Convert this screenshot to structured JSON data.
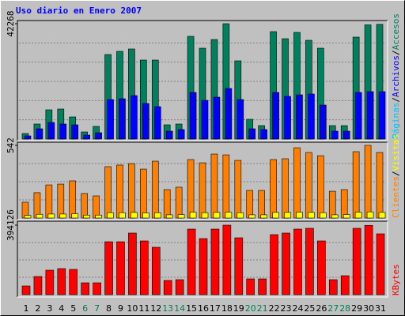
{
  "chart_data": {
    "type": "bar",
    "title": "Uso diario en Enero 2007",
    "categories": [
      "1",
      "2",
      "3",
      "4",
      "5",
      "6",
      "7",
      "8",
      "9",
      "10",
      "11",
      "12",
      "13",
      "14",
      "15",
      "16",
      "17",
      "18",
      "19",
      "20",
      "21",
      "22",
      "23",
      "24",
      "25",
      "26",
      "27",
      "28",
      "29",
      "30",
      "31"
    ],
    "category_colors": [
      "#000000",
      "#000000",
      "#000000",
      "#000000",
      "#000000",
      "#00805c",
      "#00805c",
      "#000000",
      "#000000",
      "#000000",
      "#000000",
      "#000000",
      "#00805c",
      "#00805c",
      "#000000",
      "#000000",
      "#000000",
      "#000000",
      "#000000",
      "#00805c",
      "#00805c",
      "#000000",
      "#000000",
      "#000000",
      "#000000",
      "#000000",
      "#00805c",
      "#00805c",
      "#000000",
      "#000000",
      "#000000"
    ],
    "legend_separator": "/",
    "panels": [
      {
        "ylim": [
          0,
          42268
        ],
        "yticks": [
          42268
        ],
        "extra_legend": [
          {
            "name": "Páginas",
            "color": "#00c0ff"
          }
        ],
        "series": [
          {
            "name": "Archivos",
            "color": "#0000ff",
            "values": [
              1158,
              3764,
              6080,
              5500,
              5211,
              1448,
              2316,
              14475,
              14765,
              15923,
              13028,
              11870,
              2895,
              3474,
              17081,
              14186,
              15344,
              18528,
              14475,
              3764,
              3474,
              17081,
              15633,
              16212,
              16502,
              12449,
              2895,
              2895,
              17081,
              17370,
              17370
            ]
          },
          {
            "name": "Accesos",
            "color": "#00805c",
            "values": [
              2027,
              5500,
              10711,
              11001,
              8106,
              2606,
              4632,
              30977,
              32135,
              33003,
              28950,
              28950,
              5211,
              5500,
              37635,
              33293,
              36477,
              42268,
              28661,
              7238,
              4922,
              39372,
              36767,
              39083,
              36188,
              33293,
              4922,
              4922,
              37346,
              41850,
              42050
            ]
          }
        ]
      },
      {
        "ylim": [
          0,
          542
        ],
        "yticks": [
          542
        ],
        "series": [
          {
            "name": "Clientes",
            "color": "#ff8000",
            "values": [
              118,
              189,
              247,
              253,
              277,
              183,
              165,
              383,
              395,
              406,
              365,
              424,
              212,
              230,
              436,
              412,
              477,
              471,
              430,
              206,
              206,
              436,
              442,
              524,
              489,
              465,
              200,
              212,
              495,
              542,
              489
            ]
          },
          {
            "name": "Visitas",
            "color": "#ffff00",
            "values": [
              20,
              28,
              30,
              30,
              32,
              22,
              22,
              40,
              40,
              42,
              38,
              40,
              24,
              26,
              44,
              40,
              42,
              44,
              40,
              24,
              24,
              42,
              42,
              44,
              42,
              40,
              24,
              26,
              44,
              46,
              42
            ]
          }
        ]
      },
      {
        "ylim": [
          0,
          394126
        ],
        "yticks": [
          394126
        ],
        "series": [
          {
            "name": "KBytes",
            "color": "#ff0000",
            "values": [
              49266,
              103010,
              138840,
              147797,
              143318,
              67180,
              67180,
              300073,
              300073,
              349338,
              304552,
              268722,
              80617,
              85095,
              371732,
              317988,
              371732,
              394126,
              322466,
              89574,
              89574,
              340381,
              349338,
              371732,
              376211,
              304552,
              85095,
              107489,
              376211,
              393000,
              344860
            ]
          }
        ]
      }
    ]
  }
}
